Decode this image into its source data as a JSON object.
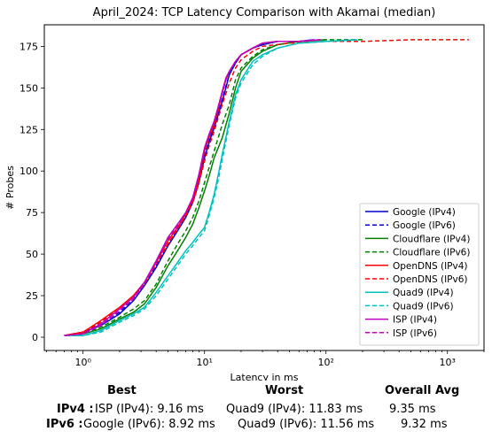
{
  "chart_data": {
    "type": "line",
    "title": "April_2024: TCP Latency Comparison with Akamai (median)",
    "xlabel": "Latency in ms",
    "ylabel": "# Probes",
    "x_scale": "log",
    "xlim": [
      0.48,
      2000
    ],
    "ylim": [
      -8,
      188
    ],
    "x_ticks": [
      1,
      10,
      100,
      1000
    ],
    "x_tick_labels": [
      "10⁰",
      "10¹",
      "10²",
      "10³"
    ],
    "y_ticks": [
      0,
      25,
      50,
      75,
      100,
      125,
      150,
      175
    ],
    "y_tick_labels": [
      "0",
      "25",
      "50",
      "75",
      "100",
      "125",
      "150",
      "175"
    ],
    "grid": false,
    "legend_position": "lower-right",
    "series": [
      {
        "name": "Google (IPv4)",
        "color": "#0000cc",
        "dash": "solid",
        "x": [
          0.7,
          1.0,
          1.4,
          2.0,
          2.6,
          3.2,
          4.0,
          5.0,
          6.0,
          7.0,
          8.0,
          9.0,
          10.0,
          11.0,
          12.0,
          13.0,
          14.0,
          15.0,
          16.0,
          18.0,
          20.0,
          25.0,
          30.0,
          40.0,
          60.0,
          80.0
        ],
        "y": [
          1,
          3,
          7,
          14,
          22,
          31,
          42,
          55,
          64,
          72,
          81,
          93,
          108,
          118,
          126,
          134,
          142,
          150,
          158,
          165,
          170,
          174,
          176,
          178,
          178,
          179
        ]
      },
      {
        "name": "Google (IPv6)",
        "color": "#0000cc",
        "dash": "dashed",
        "x": [
          0.7,
          1.0,
          1.4,
          2.0,
          2.6,
          3.2,
          4.0,
          5.0,
          6.0,
          7.0,
          8.0,
          9.0,
          10.0,
          11.0,
          12.0,
          13.0,
          14.0,
          15.0,
          16.0,
          18.0,
          20.0,
          25.0,
          30.0,
          40.0,
          60.0,
          80.0
        ],
        "y": [
          1,
          3,
          8,
          15,
          23,
          32,
          43,
          56,
          65,
          73,
          82,
          94,
          109,
          119,
          127,
          135,
          143,
          151,
          158,
          165,
          170,
          174,
          176,
          178,
          178,
          179
        ]
      },
      {
        "name": "Cloudflare (IPv4)",
        "color": "#008000",
        "dash": "solid",
        "x": [
          0.7,
          1.0,
          1.4,
          2.0,
          2.6,
          3.2,
          4.0,
          5.0,
          6.0,
          7.0,
          8.0,
          9.0,
          10.0,
          11.0,
          12.0,
          14.0,
          16.0,
          18.0,
          20.0,
          25.0,
          30.0,
          40.0,
          60.0,
          100.0
        ],
        "y": [
          1,
          2,
          5,
          11,
          15,
          20,
          30,
          43,
          52,
          60,
          68,
          78,
          88,
          98,
          108,
          120,
          135,
          150,
          160,
          168,
          172,
          176,
          178,
          179
        ]
      },
      {
        "name": "Cloudflare (IPv6)",
        "color": "#008000",
        "dash": "dashed",
        "x": [
          0.7,
          1.0,
          1.4,
          2.0,
          2.6,
          3.2,
          4.0,
          5.0,
          6.0,
          7.0,
          8.0,
          9.0,
          10.0,
          11.0,
          12.0,
          14.0,
          16.0,
          18.0,
          20.0,
          25.0,
          30.0,
          40.0,
          60.0,
          100.0,
          200.0
        ],
        "y": [
          1,
          2,
          6,
          12,
          17,
          22,
          32,
          46,
          56,
          64,
          72,
          82,
          93,
          103,
          112,
          128,
          140,
          155,
          162,
          169,
          173,
          176,
          178,
          179,
          179
        ]
      },
      {
        "name": "OpenDNS (IPv4)",
        "color": "#ff0000",
        "dash": "solid",
        "x": [
          0.7,
          1.0,
          1.4,
          2.0,
          2.6,
          3.2,
          4.0,
          5.0,
          6.0,
          7.0,
          8.0,
          9.0,
          10.0,
          11.0,
          12.0,
          13.0,
          14.0,
          15.0,
          16.0,
          18.0,
          20.0,
          25.0,
          30.0,
          40.0,
          60.0,
          90.0
        ],
        "y": [
          1,
          3,
          10,
          18,
          25,
          33,
          45,
          58,
          66,
          74,
          82,
          95,
          112,
          121,
          128,
          137,
          147,
          155,
          160,
          166,
          170,
          174,
          177,
          178,
          178,
          179
        ]
      },
      {
        "name": "OpenDNS (IPv6)",
        "color": "#ff0000",
        "dash": "dashed",
        "x": [
          0.7,
          1.0,
          1.4,
          2.0,
          2.6,
          3.2,
          4.0,
          5.0,
          6.0,
          7.0,
          8.0,
          9.0,
          10.0,
          11.0,
          12.0,
          14.0,
          16.0,
          18.0,
          20.0,
          25.0,
          30.0,
          50.0,
          100.0,
          200.0,
          500.0,
          1500.0
        ],
        "y": [
          1,
          3,
          9,
          18,
          24,
          32,
          44,
          56,
          65,
          73,
          81,
          93,
          106,
          116,
          124,
          140,
          153,
          162,
          167,
          172,
          175,
          177,
          178,
          178,
          179,
          179
        ]
      },
      {
        "name": "Quad9 (IPv4)",
        "color": "#00bfbf",
        "dash": "solid",
        "x": [
          0.7,
          1.0,
          1.4,
          2.0,
          2.6,
          3.2,
          4.0,
          5.0,
          6.0,
          7.0,
          8.0,
          9.0,
          10.0,
          11.0,
          12.0,
          13.0,
          14.0,
          16.0,
          18.0,
          20.0,
          25.0,
          30.0,
          40.0,
          60.0,
          100.0,
          180.0
        ],
        "y": [
          1,
          1,
          4,
          10,
          14,
          18,
          27,
          37,
          45,
          52,
          57,
          62,
          66,
          76,
          86,
          98,
          110,
          130,
          146,
          155,
          166,
          170,
          174,
          177,
          178,
          179
        ]
      },
      {
        "name": "Quad9 (IPv6)",
        "color": "#00bfbf",
        "dash": "dashed",
        "x": [
          0.7,
          1.0,
          1.4,
          2.0,
          2.6,
          3.2,
          4.0,
          5.0,
          6.0,
          7.0,
          8.0,
          9.0,
          10.0,
          11.0,
          12.0,
          13.0,
          14.0,
          16.0,
          18.0,
          20.0,
          25.0,
          30.0,
          40.0,
          60.0,
          100.0,
          180.0
        ],
        "y": [
          1,
          1,
          3,
          9,
          13,
          17,
          25,
          35,
          43,
          50,
          55,
          60,
          64,
          74,
          84,
          95,
          107,
          128,
          144,
          153,
          164,
          169,
          174,
          177,
          178,
          179
        ]
      },
      {
        "name": "ISP (IPv4)",
        "color": "#bf00bf",
        "dash": "solid",
        "x": [
          0.7,
          1.0,
          1.4,
          2.0,
          2.6,
          3.2,
          4.0,
          5.0,
          6.0,
          7.0,
          8.0,
          9.0,
          10.0,
          11.0,
          12.0,
          13.0,
          14.0,
          15.0,
          16.0,
          18.0,
          20.0,
          25.0,
          30.0,
          40.0,
          60.0,
          90.0
        ],
        "y": [
          1,
          2,
          8,
          17,
          24,
          33,
          46,
          60,
          68,
          75,
          84,
          98,
          114,
          123,
          130,
          139,
          148,
          156,
          160,
          166,
          170,
          174,
          177,
          178,
          178,
          179
        ]
      },
      {
        "name": "ISP (IPv6)",
        "color": "#bf00bf",
        "dash": "dashed",
        "x": [
          0.7,
          1.0,
          1.4,
          2.0,
          2.6,
          3.2,
          4.0,
          5.0,
          6.0,
          7.0,
          8.0,
          9.0,
          10.0,
          11.0,
          12.0,
          13.0,
          14.0,
          15.0,
          16.0,
          18.0,
          20.0,
          25.0,
          30.0,
          40.0,
          60.0,
          90.0
        ],
        "y": [
          1,
          2,
          7,
          16,
          23,
          32,
          45,
          59,
          67,
          75,
          83,
          97,
          113,
          122,
          130,
          138,
          147,
          155,
          160,
          166,
          170,
          174,
          177,
          178,
          178,
          179
        ]
      }
    ]
  },
  "summary": {
    "best_header": "Best",
    "worst_header": "Worst",
    "avg_header": "Overall Avg",
    "ipv4_label": "IPv4 :",
    "ipv4_best": "ISP (IPv4): 9.16 ms",
    "ipv4_worst": "Quad9 (IPv4): 11.83 ms",
    "ipv4_avg": "9.35 ms",
    "ipv6_label": "IPv6 :",
    "ipv6_best": "Google (IPv6): 8.92 ms",
    "ipv6_worst": "Quad9 (IPv6): 11.56 ms",
    "ipv6_avg": "9.32 ms"
  }
}
